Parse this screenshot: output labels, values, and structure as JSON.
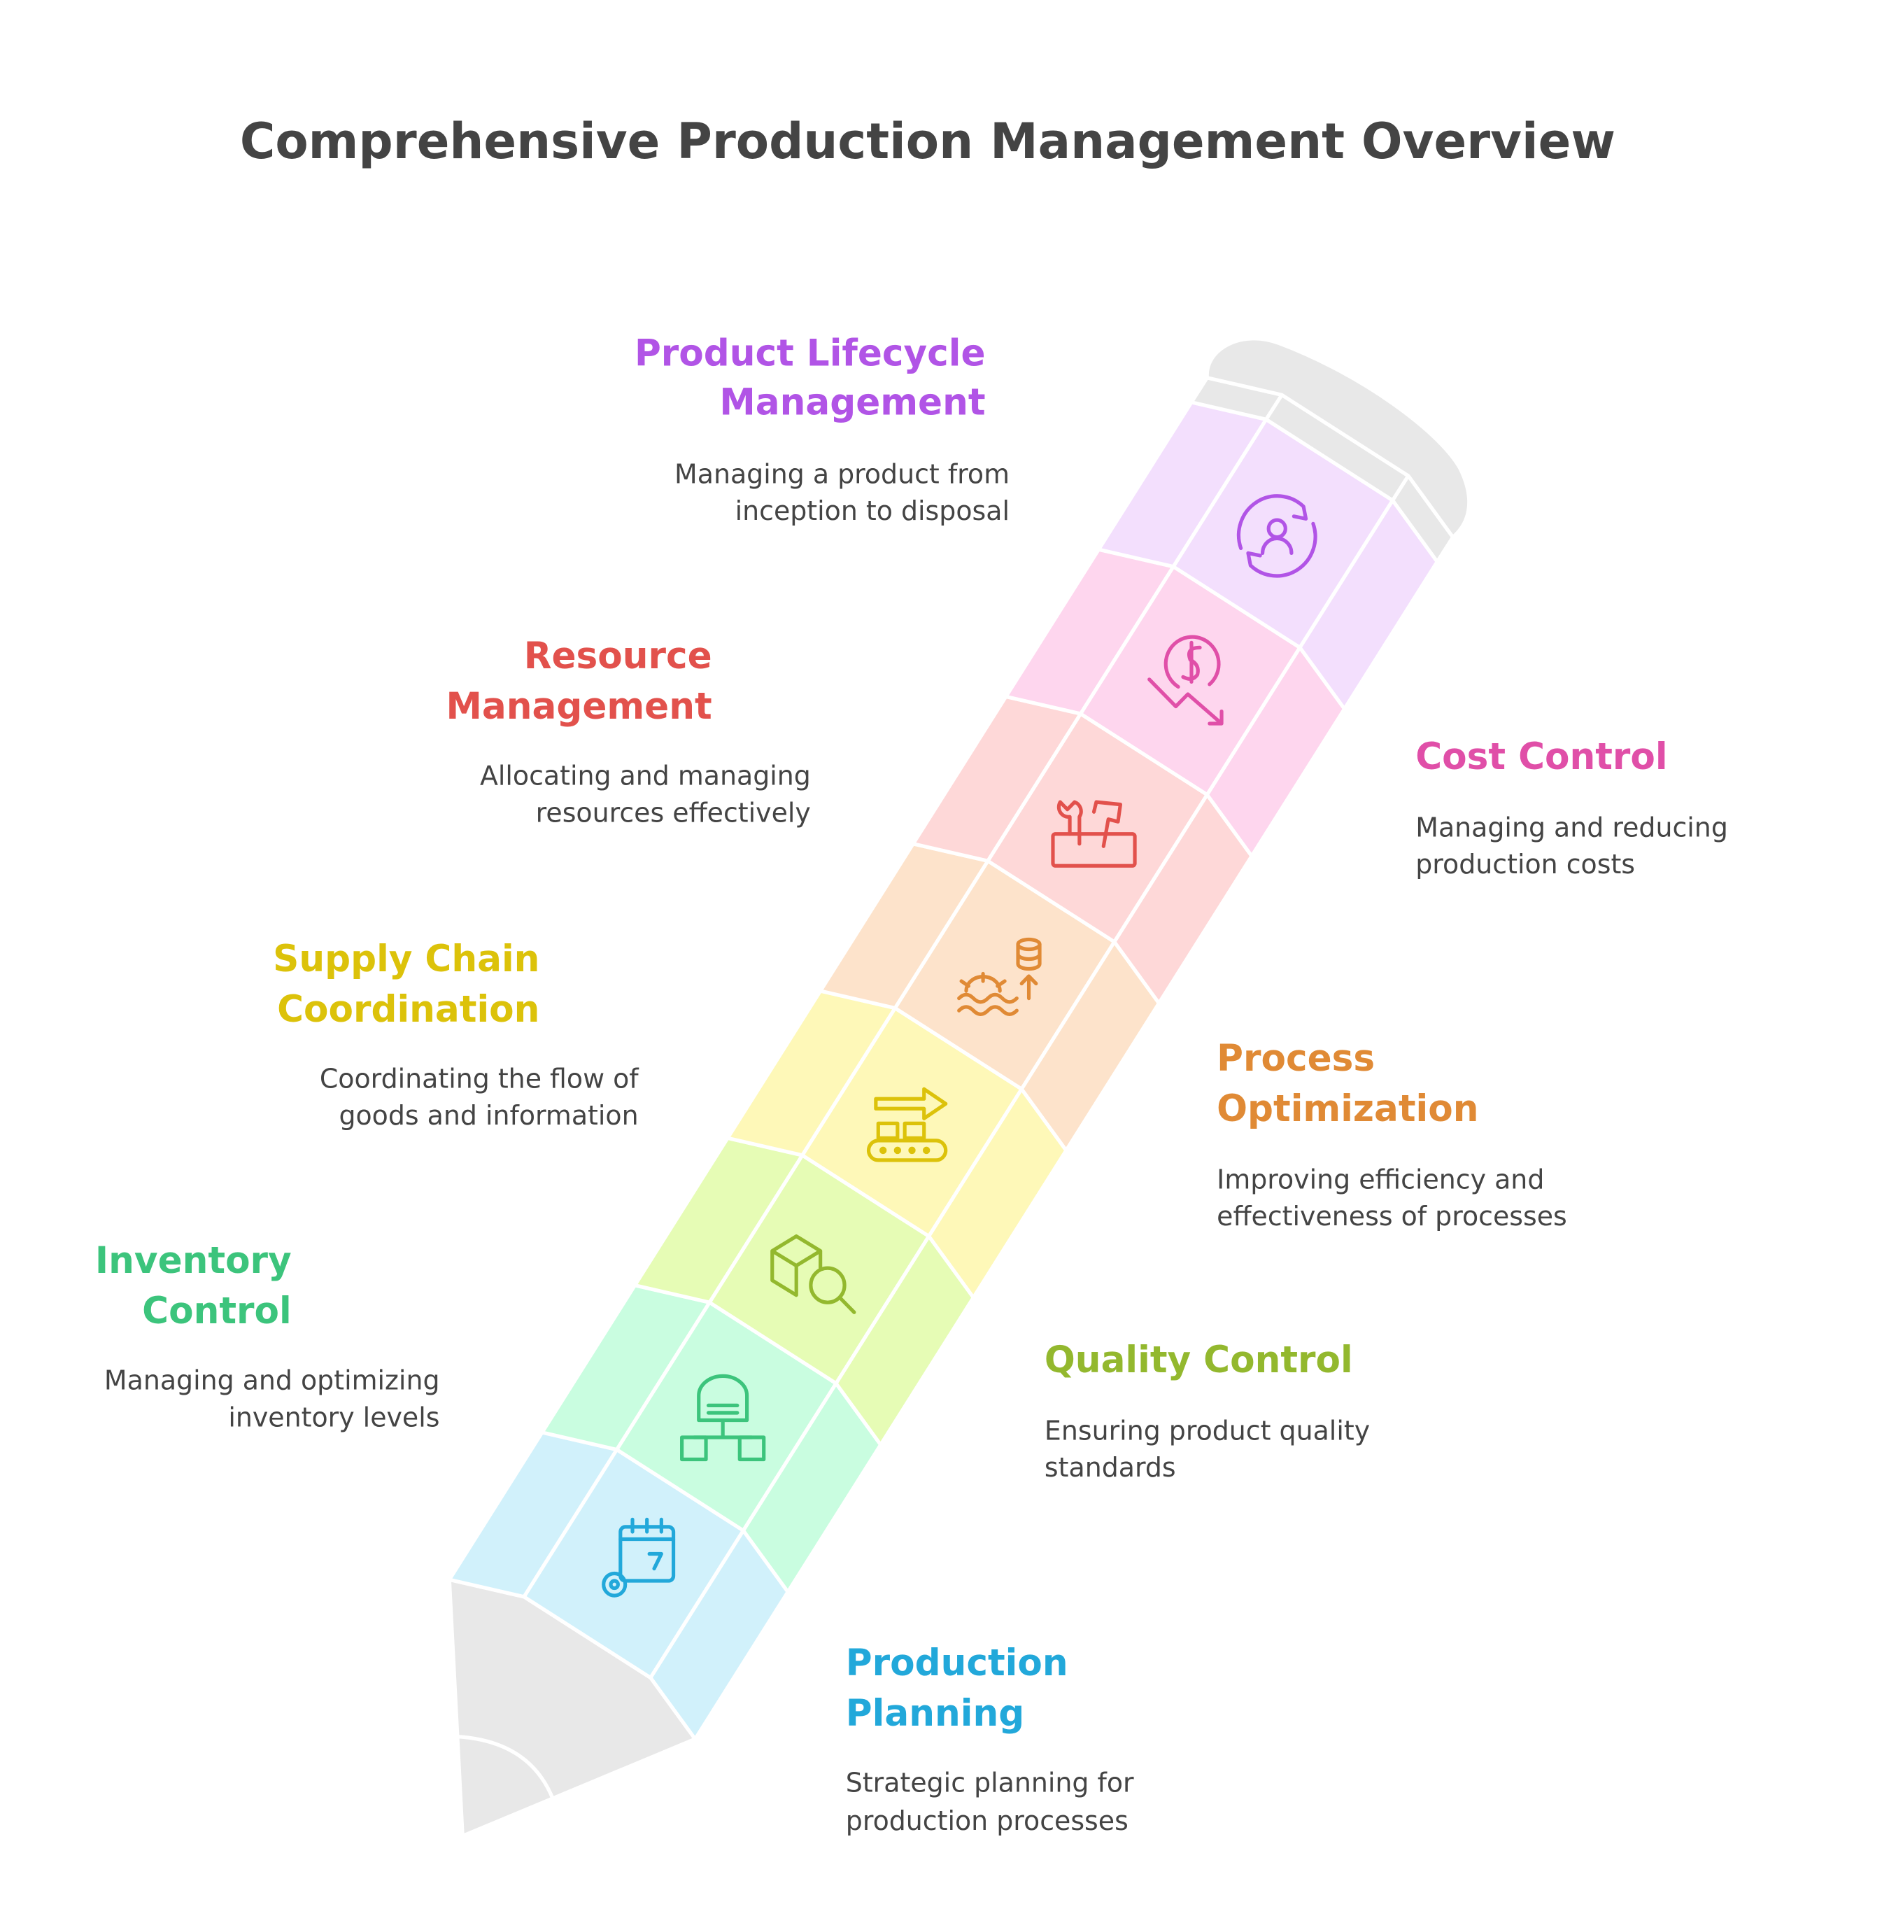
{
  "title": "Comprehensive Production Management Overview",
  "colors": {
    "segments": [
      "#d1f1fb",
      "#c9fde0",
      "#e6fcb5",
      "#fef8b8",
      "#fde3cb",
      "#fed8d8",
      "#fed6ee",
      "#f3dffd"
    ],
    "eraser": "#e8e8e8"
  },
  "items": [
    {
      "title_lines": [
        "Production",
        "Planning"
      ],
      "desc_lines": [
        "Strategic planning for",
        "production processes"
      ],
      "color": "#22a8da",
      "icon": "calendar-gear-icon"
    },
    {
      "title_lines": [
        "Inventory",
        "Control"
      ],
      "desc_lines": [
        "Managing and optimizing",
        "inventory levels"
      ],
      "color": "#3cc47c",
      "icon": "warehouse-network-icon"
    },
    {
      "title_lines": [
        "Quality Control"
      ],
      "desc_lines": [
        "Ensuring product quality",
        "standards"
      ],
      "color": "#93b82e",
      "icon": "box-search-icon"
    },
    {
      "title_lines": [
        "Supply Chain",
        "Coordination"
      ],
      "desc_lines": [
        "Coordinating the flow of",
        "goods and information"
      ],
      "color": "#dcc20a",
      "icon": "conveyor-arrow-icon"
    },
    {
      "title_lines": [
        "Process",
        "Optimization"
      ],
      "desc_lines": [
        "Improving efficiency and",
        "effectiveness of processes"
      ],
      "color": "#e08a35",
      "icon": "gear-coins-growth-icon"
    },
    {
      "title_lines": [
        "Resource",
        "Management"
      ],
      "desc_lines": [
        "Allocating and managing",
        "resources effectively"
      ],
      "color": "#e2514c",
      "icon": "toolbox-icon"
    },
    {
      "title_lines": [
        "Cost Control"
      ],
      "desc_lines": [
        "Managing and reducing",
        "production costs"
      ],
      "color": "#e04fa8",
      "icon": "dollar-decrease-icon"
    },
    {
      "title_lines": [
        "Product Lifecycle",
        "Management"
      ],
      "desc_lines": [
        "Managing a product from",
        "inception to disposal"
      ],
      "color": "#b154e6",
      "icon": "user-cycle-icon"
    }
  ]
}
